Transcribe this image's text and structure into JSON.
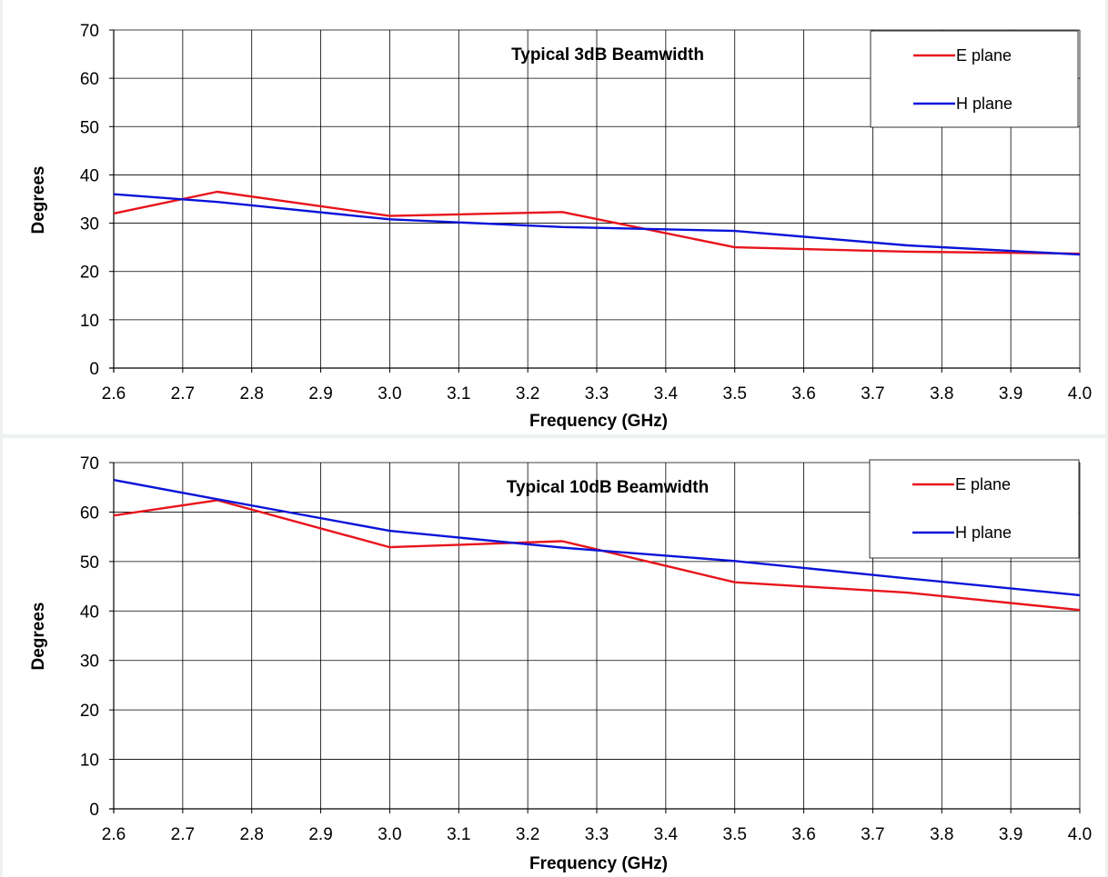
{
  "chart_data": [
    {
      "type": "line",
      "title": "Typical 3dB Beamwidth",
      "xlabel": "Frequency (GHz)",
      "ylabel": "Degrees",
      "xlim": [
        2.6,
        4.0
      ],
      "ylim": [
        0,
        70
      ],
      "x_ticks": [
        "2.6",
        "2.7",
        "2.8",
        "2.9",
        "3.0",
        "3.1",
        "3.2",
        "3.3",
        "3.4",
        "3.5",
        "3.6",
        "3.7",
        "3.8",
        "3.9",
        "4.0"
      ],
      "y_ticks": [
        "0",
        "10",
        "20",
        "30",
        "40",
        "50",
        "60",
        "70"
      ],
      "grid": true,
      "legend_position": "top-right",
      "series": [
        {
          "name": "E plane",
          "color": "#e8141c",
          "x": [
            2.6,
            2.75,
            3.0,
            3.25,
            3.5,
            3.75,
            4.0
          ],
          "y": [
            32.0,
            36.5,
            31.5,
            32.3,
            25.0,
            24.1,
            23.7
          ]
        },
        {
          "name": "H plane",
          "color": "#0a14d8",
          "x": [
            2.6,
            2.75,
            3.0,
            3.25,
            3.5,
            3.75,
            4.0
          ],
          "y": [
            36.0,
            34.4,
            30.8,
            29.2,
            28.4,
            25.4,
            23.5
          ]
        }
      ]
    },
    {
      "type": "line",
      "title": "Typical 10dB Beamwidth",
      "xlabel": "Frequency  (GHz)",
      "ylabel": "Degrees",
      "xlim": [
        2.6,
        4.0
      ],
      "ylim": [
        0,
        70
      ],
      "x_ticks": [
        "2.6",
        "2.7",
        "2.8",
        "2.9",
        "3.0",
        "3.1",
        "3.2",
        "3.3",
        "3.4",
        "3.5",
        "3.6",
        "3.7",
        "3.8",
        "3.9",
        "4.0"
      ],
      "y_ticks": [
        "0",
        "10",
        "20",
        "30",
        "40",
        "50",
        "60",
        "70"
      ],
      "grid": true,
      "legend_position": "top-right",
      "series": [
        {
          "name": "E plane",
          "color": "#e8141c",
          "x": [
            2.6,
            2.75,
            3.0,
            3.25,
            3.5,
            3.75,
            4.0
          ],
          "y": [
            59.3,
            62.4,
            52.9,
            54.1,
            45.8,
            43.7,
            40.2
          ]
        },
        {
          "name": "H plane",
          "color": "#0a14d8",
          "x": [
            2.6,
            2.75,
            3.0,
            3.25,
            3.5,
            3.75,
            4.0
          ],
          "y": [
            66.5,
            62.6,
            56.2,
            52.8,
            50.1,
            46.6,
            43.2
          ]
        }
      ]
    }
  ]
}
